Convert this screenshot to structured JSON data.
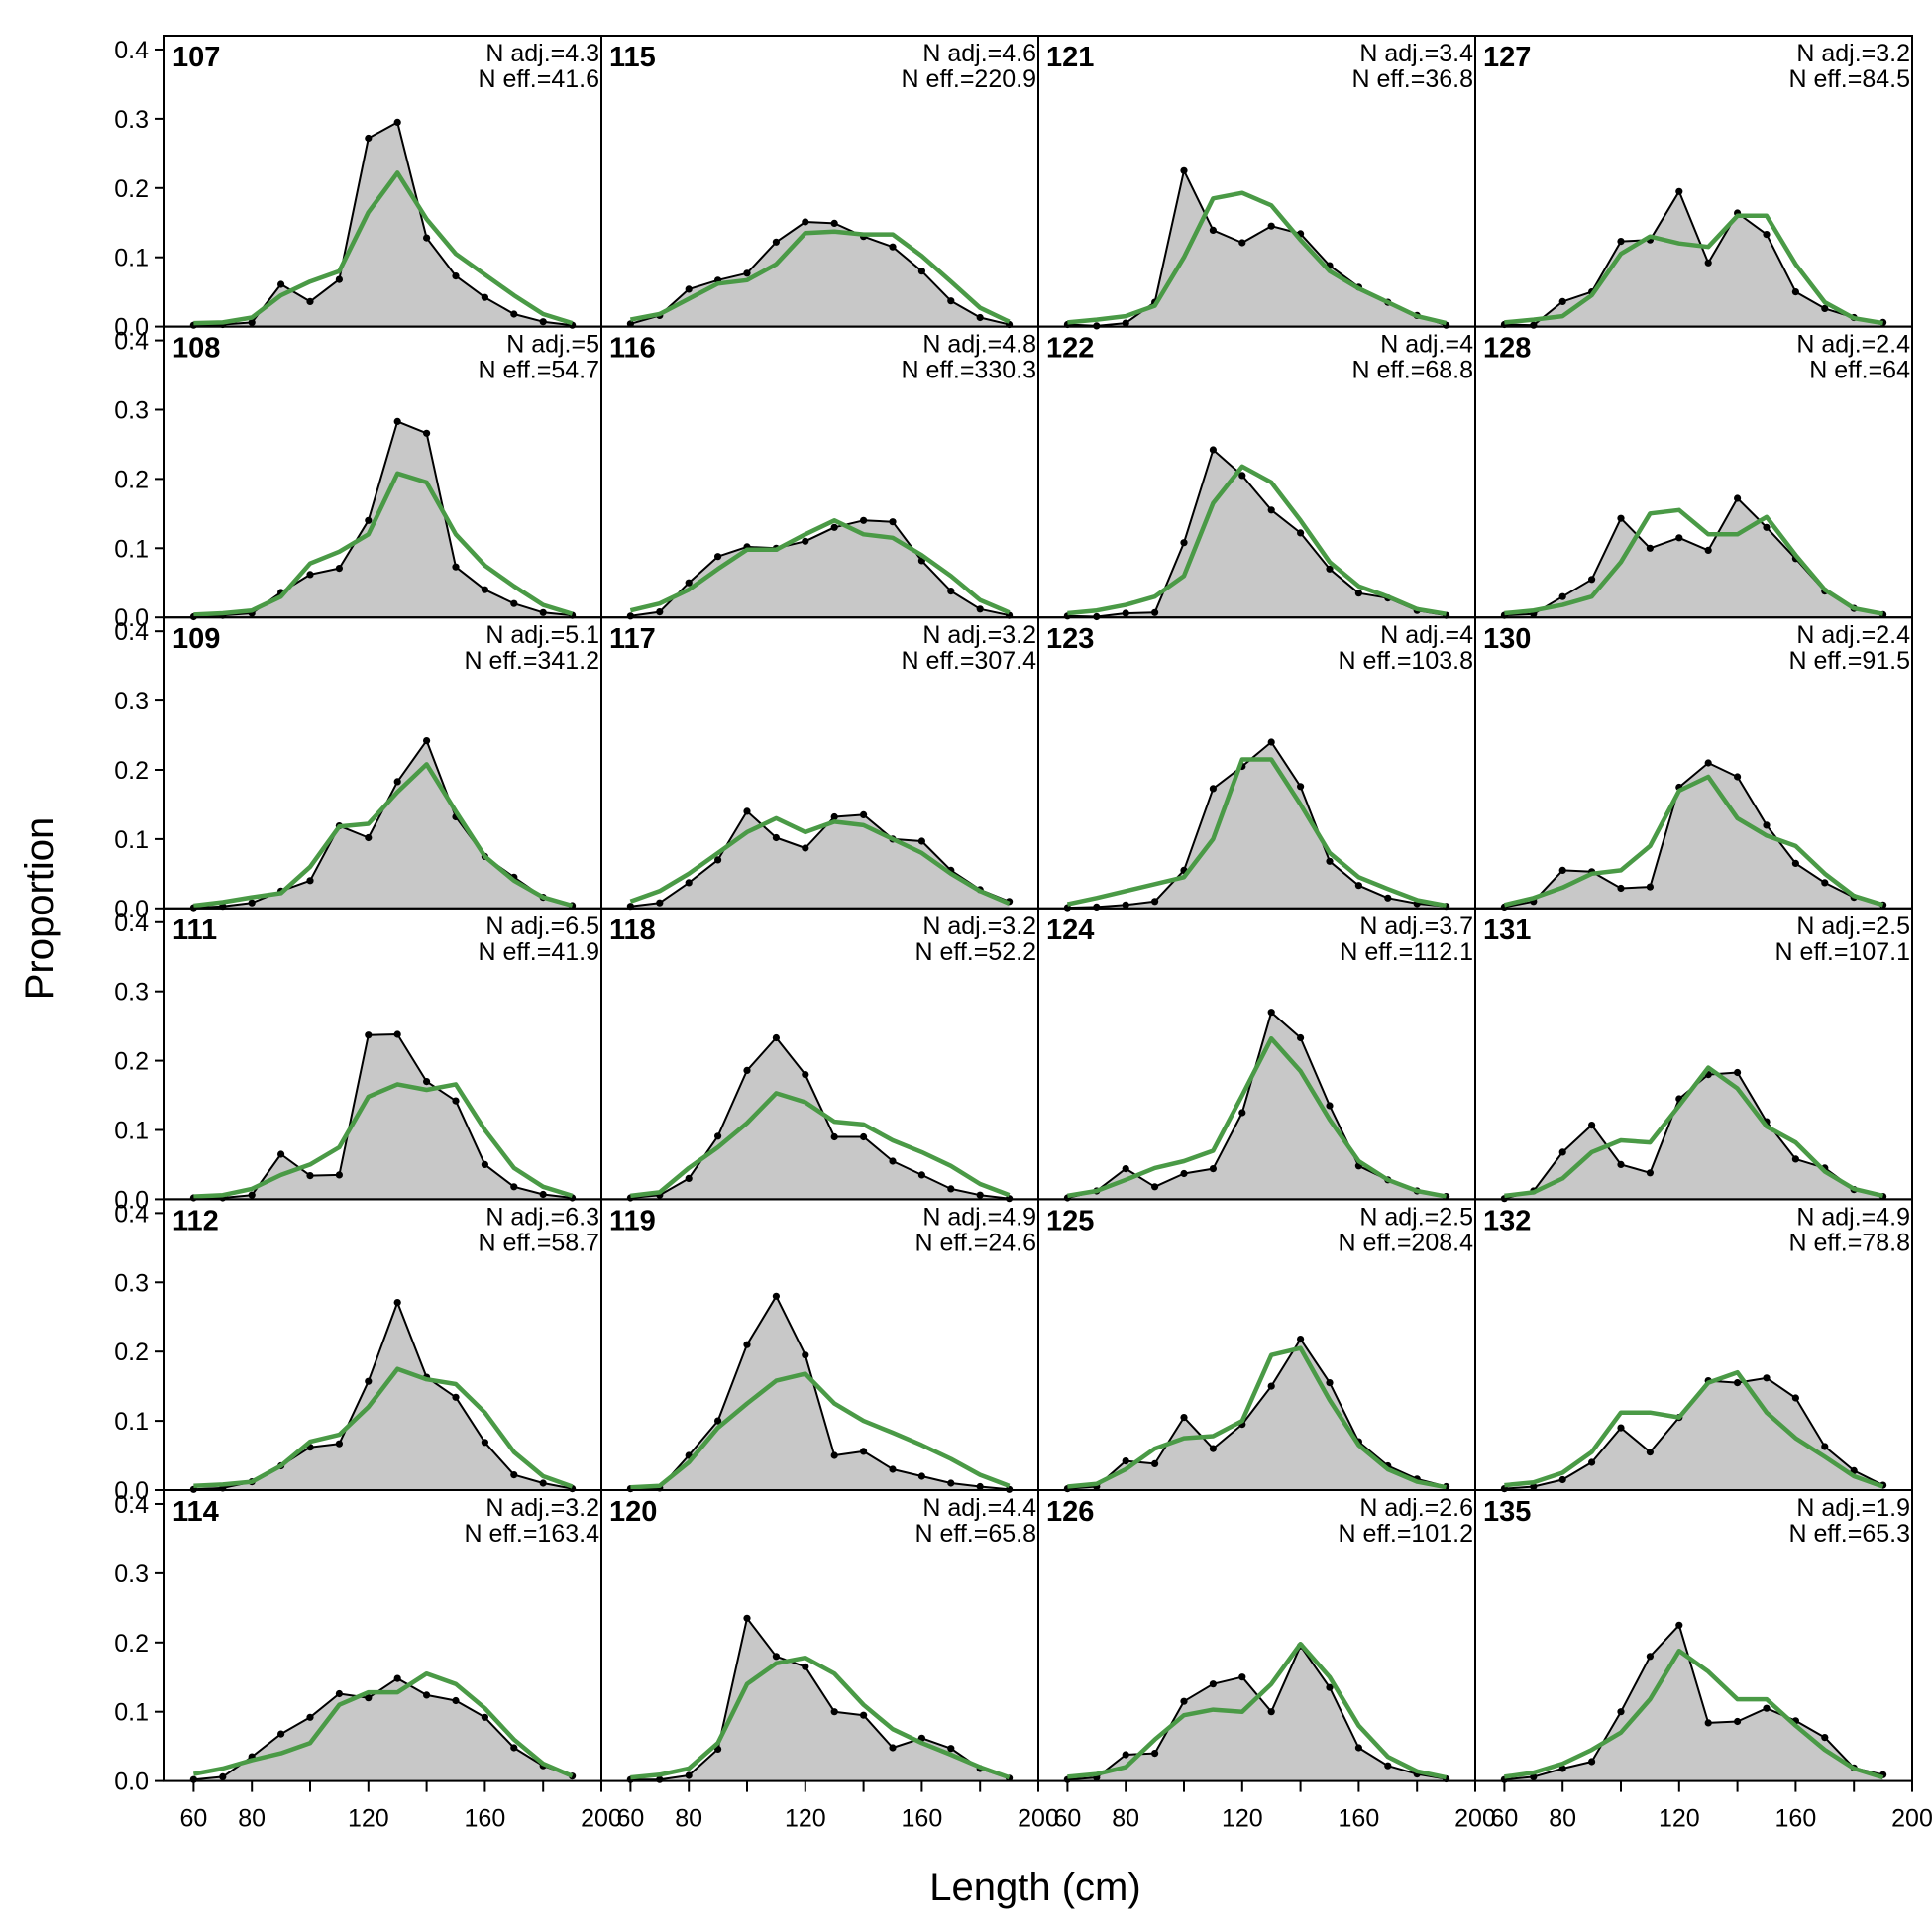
{
  "chart_data": {
    "type": "area",
    "xlabel": "Length (cm)",
    "ylabel": "Proportion",
    "xlim": [
      50,
      200
    ],
    "ylim": [
      0,
      0.42
    ],
    "x_ticks": [
      60,
      80,
      120,
      160,
      200
    ],
    "y_ticks": [
      0.0,
      0.1,
      0.2,
      0.3,
      0.4
    ],
    "y_tick_labels": [
      "0.0",
      "0.1",
      "0.2",
      "0.3",
      "0.4"
    ],
    "x": [
      60,
      70,
      80,
      90,
      100,
      110,
      120,
      130,
      140,
      150,
      160,
      170,
      180,
      190
    ],
    "colors": {
      "observed_fill": "#c8c8c8",
      "observed_line": "#000000",
      "expected_line": "#4a9a46",
      "zero_line": "#b3b3b3"
    },
    "panels": [
      {
        "id": "107",
        "n_adj": "N adj.=4.3",
        "n_eff": "N eff.=41.6",
        "observed": [
          0.002,
          0.003,
          0.006,
          0.061,
          0.036,
          0.068,
          0.272,
          0.295,
          0.128,
          0.073,
          0.042,
          0.018,
          0.007,
          0.002
        ],
        "expected": [
          0.005,
          0.006,
          0.013,
          0.045,
          0.065,
          0.08,
          0.165,
          0.222,
          0.155,
          0.105,
          0.075,
          0.045,
          0.018,
          0.005
        ]
      },
      {
        "id": "115",
        "n_adj": "N adj.=4.6",
        "n_eff": "N eff.=220.9",
        "observed": [
          0.004,
          0.016,
          0.054,
          0.067,
          0.077,
          0.122,
          0.151,
          0.149,
          0.13,
          0.115,
          0.08,
          0.037,
          0.013,
          0.003
        ],
        "expected": [
          0.01,
          0.018,
          0.04,
          0.062,
          0.067,
          0.09,
          0.135,
          0.137,
          0.133,
          0.133,
          0.102,
          0.065,
          0.027,
          0.007
        ]
      },
      {
        "id": "121",
        "n_adj": "N adj.=3.4",
        "n_eff": "N eff.=36.8",
        "observed": [
          0.003,
          0.001,
          0.005,
          0.035,
          0.225,
          0.139,
          0.121,
          0.145,
          0.134,
          0.088,
          0.057,
          0.035,
          0.016,
          0.002
        ],
        "expected": [
          0.006,
          0.01,
          0.015,
          0.03,
          0.1,
          0.185,
          0.193,
          0.175,
          0.125,
          0.08,
          0.055,
          0.035,
          0.015,
          0.005
        ]
      },
      {
        "id": "127",
        "n_adj": "N adj.=3.2",
        "n_eff": "N eff.=84.5",
        "observed": [
          0.003,
          0.002,
          0.036,
          0.05,
          0.123,
          0.125,
          0.195,
          0.092,
          0.164,
          0.133,
          0.05,
          0.026,
          0.013,
          0.006
        ],
        "expected": [
          0.006,
          0.01,
          0.015,
          0.045,
          0.105,
          0.13,
          0.12,
          0.115,
          0.16,
          0.16,
          0.09,
          0.035,
          0.012,
          0.005
        ]
      },
      {
        "id": "108",
        "n_adj": "N adj.=5",
        "n_eff": "N eff.=54.7",
        "observed": [
          0.001,
          0.003,
          0.006,
          0.036,
          0.062,
          0.071,
          0.14,
          0.283,
          0.266,
          0.073,
          0.04,
          0.02,
          0.007,
          0.003
        ],
        "expected": [
          0.004,
          0.006,
          0.01,
          0.03,
          0.078,
          0.095,
          0.12,
          0.208,
          0.195,
          0.12,
          0.075,
          0.045,
          0.018,
          0.005
        ]
      },
      {
        "id": "116",
        "n_adj": "N adj.=4.8",
        "n_eff": "N eff.=330.3",
        "observed": [
          0.002,
          0.008,
          0.05,
          0.088,
          0.102,
          0.1,
          0.11,
          0.13,
          0.14,
          0.138,
          0.082,
          0.038,
          0.012,
          0.003
        ],
        "expected": [
          0.01,
          0.02,
          0.04,
          0.07,
          0.098,
          0.098,
          0.12,
          0.14,
          0.12,
          0.115,
          0.09,
          0.06,
          0.025,
          0.007
        ]
      },
      {
        "id": "122",
        "n_adj": "N adj.=4",
        "n_eff": "N eff.=68.8",
        "observed": [
          0.002,
          0.001,
          0.006,
          0.007,
          0.108,
          0.242,
          0.205,
          0.155,
          0.122,
          0.07,
          0.035,
          0.028,
          0.01,
          0.003
        ],
        "expected": [
          0.006,
          0.01,
          0.018,
          0.03,
          0.06,
          0.165,
          0.218,
          0.195,
          0.14,
          0.08,
          0.045,
          0.03,
          0.012,
          0.005
        ]
      },
      {
        "id": "128",
        "n_adj": "N adj.=2.4",
        "n_eff": "N eff.=64",
        "observed": [
          0.003,
          0.005,
          0.03,
          0.055,
          0.143,
          0.1,
          0.115,
          0.097,
          0.172,
          0.13,
          0.085,
          0.038,
          0.013,
          0.004
        ],
        "expected": [
          0.006,
          0.01,
          0.018,
          0.03,
          0.08,
          0.15,
          0.155,
          0.12,
          0.12,
          0.145,
          0.09,
          0.04,
          0.013,
          0.005
        ]
      },
      {
        "id": "109",
        "n_adj": "N adj.=5.1",
        "n_eff": "N eff.=341.2",
        "observed": [
          0.001,
          0.003,
          0.008,
          0.025,
          0.04,
          0.119,
          0.102,
          0.183,
          0.242,
          0.132,
          0.075,
          0.045,
          0.016,
          0.004
        ],
        "expected": [
          0.004,
          0.009,
          0.016,
          0.022,
          0.06,
          0.118,
          0.122,
          0.168,
          0.208,
          0.14,
          0.075,
          0.04,
          0.016,
          0.004
        ]
      },
      {
        "id": "117",
        "n_adj": "N adj.=3.2",
        "n_eff": "N eff.=307.4",
        "observed": [
          0.003,
          0.008,
          0.037,
          0.07,
          0.14,
          0.102,
          0.087,
          0.132,
          0.135,
          0.1,
          0.097,
          0.055,
          0.027,
          0.01
        ],
        "expected": [
          0.01,
          0.025,
          0.05,
          0.08,
          0.11,
          0.13,
          0.11,
          0.125,
          0.12,
          0.1,
          0.08,
          0.05,
          0.025,
          0.007
        ]
      },
      {
        "id": "123",
        "n_adj": "N adj.=4",
        "n_eff": "N eff.=103.8",
        "observed": [
          0.001,
          0.002,
          0.005,
          0.01,
          0.055,
          0.173,
          0.205,
          0.24,
          0.176,
          0.068,
          0.033,
          0.015,
          0.007,
          0.003
        ],
        "expected": [
          0.006,
          0.015,
          0.025,
          0.035,
          0.045,
          0.1,
          0.215,
          0.215,
          0.15,
          0.08,
          0.045,
          0.028,
          0.012,
          0.004
        ]
      },
      {
        "id": "130",
        "n_adj": "N adj.=2.4",
        "n_eff": "N eff.=91.5",
        "observed": [
          0.002,
          0.01,
          0.055,
          0.053,
          0.029,
          0.031,
          0.175,
          0.21,
          0.19,
          0.12,
          0.065,
          0.037,
          0.016,
          0.005
        ],
        "expected": [
          0.005,
          0.015,
          0.03,
          0.05,
          0.055,
          0.09,
          0.17,
          0.19,
          0.13,
          0.105,
          0.09,
          0.05,
          0.018,
          0.005
        ]
      },
      {
        "id": "111",
        "n_adj": "N adj.=6.5",
        "n_eff": "N eff.=41.9",
        "observed": [
          0.002,
          0.002,
          0.006,
          0.065,
          0.034,
          0.035,
          0.237,
          0.238,
          0.17,
          0.142,
          0.05,
          0.018,
          0.007,
          0.002
        ],
        "expected": [
          0.004,
          0.006,
          0.015,
          0.035,
          0.05,
          0.075,
          0.148,
          0.166,
          0.158,
          0.166,
          0.1,
          0.045,
          0.018,
          0.005
        ]
      },
      {
        "id": "118",
        "n_adj": "N adj.=3.2",
        "n_eff": "N eff.=52.2",
        "observed": [
          0.002,
          0.006,
          0.03,
          0.091,
          0.186,
          0.233,
          0.18,
          0.09,
          0.09,
          0.055,
          0.035,
          0.015,
          0.006,
          0.001
        ],
        "expected": [
          0.005,
          0.01,
          0.045,
          0.075,
          0.11,
          0.153,
          0.14,
          0.112,
          0.108,
          0.085,
          0.068,
          0.048,
          0.022,
          0.006
        ]
      },
      {
        "id": "124",
        "n_adj": "N adj.=3.7",
        "n_eff": "N eff.=112.1",
        "observed": [
          0.002,
          0.012,
          0.044,
          0.018,
          0.037,
          0.044,
          0.125,
          0.27,
          0.233,
          0.135,
          0.048,
          0.028,
          0.012,
          0.004
        ],
        "expected": [
          0.005,
          0.012,
          0.028,
          0.045,
          0.055,
          0.07,
          0.15,
          0.232,
          0.185,
          0.115,
          0.055,
          0.028,
          0.012,
          0.004
        ]
      },
      {
        "id": "131",
        "n_adj": "N adj.=2.5",
        "n_eff": "N eff.=107.1",
        "observed": [
          0.001,
          0.012,
          0.068,
          0.107,
          0.05,
          0.038,
          0.145,
          0.18,
          0.183,
          0.112,
          0.058,
          0.045,
          0.014,
          0.004
        ],
        "expected": [
          0.005,
          0.01,
          0.03,
          0.068,
          0.085,
          0.082,
          0.135,
          0.19,
          0.16,
          0.105,
          0.082,
          0.04,
          0.015,
          0.005
        ]
      },
      {
        "id": "112",
        "n_adj": "N adj.=6.3",
        "n_eff": "N eff.=58.7",
        "observed": [
          0.001,
          0.003,
          0.012,
          0.035,
          0.062,
          0.067,
          0.157,
          0.271,
          0.163,
          0.134,
          0.069,
          0.022,
          0.01,
          0.002
        ],
        "expected": [
          0.006,
          0.008,
          0.012,
          0.035,
          0.07,
          0.08,
          0.12,
          0.175,
          0.16,
          0.153,
          0.112,
          0.055,
          0.02,
          0.005
        ]
      },
      {
        "id": "119",
        "n_adj": "N adj.=4.9",
        "n_eff": "N eff.=24.6",
        "observed": [
          0.002,
          0.003,
          0.05,
          0.1,
          0.21,
          0.28,
          0.195,
          0.05,
          0.056,
          0.03,
          0.02,
          0.01,
          0.005,
          0.001
        ],
        "expected": [
          0.004,
          0.006,
          0.04,
          0.09,
          0.125,
          0.158,
          0.168,
          0.125,
          0.1,
          0.083,
          0.065,
          0.045,
          0.022,
          0.006
        ]
      },
      {
        "id": "125",
        "n_adj": "N adj.=2.5",
        "n_eff": "N eff.=208.4",
        "observed": [
          0.002,
          0.005,
          0.042,
          0.038,
          0.105,
          0.06,
          0.095,
          0.15,
          0.218,
          0.155,
          0.07,
          0.035,
          0.016,
          0.005
        ],
        "expected": [
          0.005,
          0.009,
          0.03,
          0.06,
          0.075,
          0.078,
          0.1,
          0.195,
          0.205,
          0.13,
          0.065,
          0.03,
          0.012,
          0.004
        ]
      },
      {
        "id": "132",
        "n_adj": "N adj.=4.9",
        "n_eff": "N eff.=78.8",
        "observed": [
          0.002,
          0.005,
          0.015,
          0.04,
          0.09,
          0.055,
          0.105,
          0.158,
          0.155,
          0.162,
          0.133,
          0.063,
          0.028,
          0.007
        ],
        "expected": [
          0.007,
          0.011,
          0.025,
          0.055,
          0.112,
          0.112,
          0.105,
          0.155,
          0.17,
          0.112,
          0.075,
          0.048,
          0.02,
          0.005
        ]
      },
      {
        "id": "114",
        "n_adj": "N adj.=3.2",
        "n_eff": "N eff.=163.4",
        "observed": [
          0.002,
          0.006,
          0.035,
          0.068,
          0.092,
          0.126,
          0.12,
          0.148,
          0.124,
          0.116,
          0.092,
          0.048,
          0.022,
          0.007
        ],
        "expected": [
          0.01,
          0.018,
          0.03,
          0.04,
          0.055,
          0.11,
          0.128,
          0.128,
          0.155,
          0.14,
          0.105,
          0.06,
          0.025,
          0.007
        ]
      },
      {
        "id": "120",
        "n_adj": "N adj.=4.4",
        "n_eff": "N eff.=65.8",
        "observed": [
          0.002,
          0.002,
          0.008,
          0.046,
          0.235,
          0.18,
          0.165,
          0.1,
          0.095,
          0.048,
          0.062,
          0.047,
          0.018,
          0.004
        ],
        "expected": [
          0.005,
          0.009,
          0.018,
          0.055,
          0.14,
          0.17,
          0.178,
          0.155,
          0.11,
          0.075,
          0.055,
          0.038,
          0.02,
          0.005
        ]
      },
      {
        "id": "126",
        "n_adj": "N adj.=2.6",
        "n_eff": "N eff.=101.2",
        "observed": [
          0.002,
          0.005,
          0.038,
          0.04,
          0.115,
          0.14,
          0.15,
          0.1,
          0.195,
          0.135,
          0.048,
          0.022,
          0.01,
          0.003
        ],
        "expected": [
          0.006,
          0.01,
          0.02,
          0.06,
          0.095,
          0.103,
          0.1,
          0.14,
          0.198,
          0.15,
          0.08,
          0.035,
          0.014,
          0.005
        ]
      },
      {
        "id": "135",
        "n_adj": "N adj.=1.9",
        "n_eff": "N eff.=65.3",
        "observed": [
          0.002,
          0.006,
          0.018,
          0.028,
          0.1,
          0.18,
          0.225,
          0.084,
          0.086,
          0.105,
          0.087,
          0.063,
          0.019,
          0.009
        ],
        "expected": [
          0.006,
          0.012,
          0.025,
          0.045,
          0.07,
          0.118,
          0.188,
          0.158,
          0.118,
          0.118,
          0.08,
          0.045,
          0.018,
          0.005
        ]
      }
    ]
  }
}
